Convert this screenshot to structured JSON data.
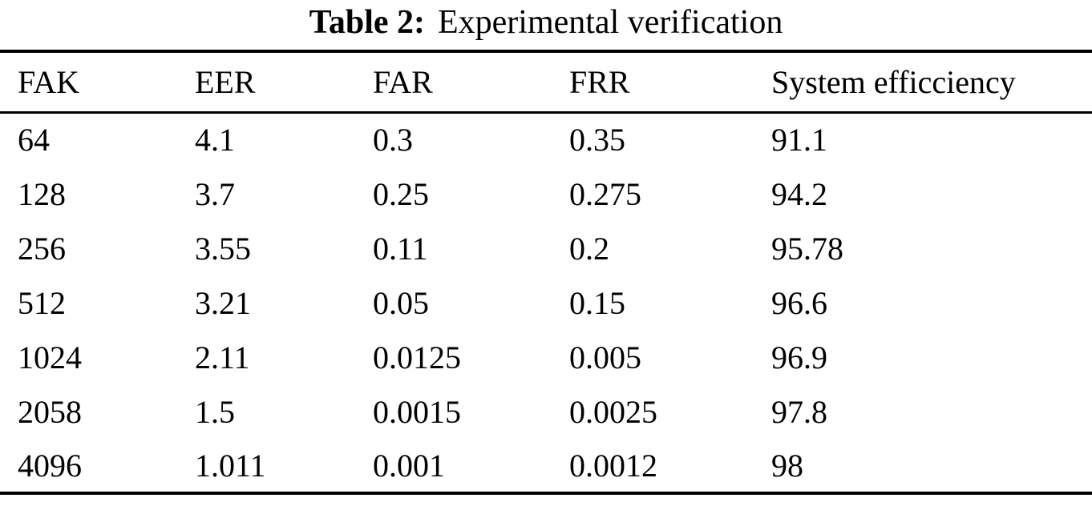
{
  "table": {
    "title_label": "Table 2:",
    "title_text": "Experimental verification",
    "columns": [
      "FAK",
      "EER",
      "FAR",
      "FRR",
      "System efficciency"
    ],
    "rows": [
      [
        "64",
        "4.1",
        "0.3",
        "0.35",
        "91.1"
      ],
      [
        "128",
        "3.7",
        "0.25",
        "0.275",
        "94.2"
      ],
      [
        "256",
        "3.55",
        "0.11",
        "0.2",
        "95.78"
      ],
      [
        "512",
        "3.21",
        "0.05",
        "0.15",
        "96.6"
      ],
      [
        "1024",
        "2.11",
        "0.0125",
        "0.005",
        "96.9"
      ],
      [
        "2058",
        "1.5",
        "0.0015",
        "0.0025",
        "97.8"
      ],
      [
        "4096",
        "1.011",
        "0.001",
        "0.0012",
        "98"
      ]
    ]
  },
  "chart_data": {
    "type": "table",
    "title": "Table 2: Experimental verification",
    "columns": [
      "FAK",
      "EER",
      "FAR",
      "FRR",
      "System efficciency"
    ],
    "rows": [
      [
        64,
        4.1,
        0.3,
        0.35,
        91.1
      ],
      [
        128,
        3.7,
        0.25,
        0.275,
        94.2
      ],
      [
        256,
        3.55,
        0.11,
        0.2,
        95.78
      ],
      [
        512,
        3.21,
        0.05,
        0.15,
        96.6
      ],
      [
        1024,
        2.11,
        0.0125,
        0.005,
        96.9
      ],
      [
        2058,
        1.5,
        0.0015,
        0.0025,
        97.8
      ],
      [
        4096,
        1.011,
        0.001,
        0.0012,
        98
      ]
    ],
    "colors": {
      "text": "#000000",
      "background": "#ffffff",
      "rules": "#000000"
    }
  }
}
